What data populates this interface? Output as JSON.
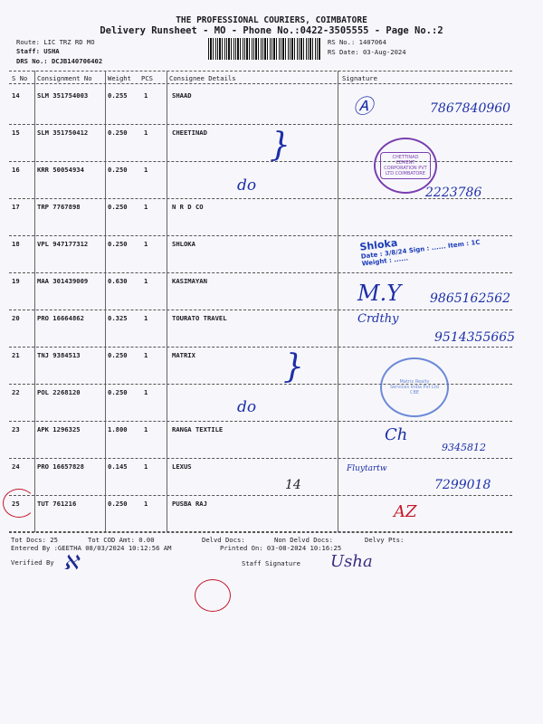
{
  "header": {
    "company": "THE PROFESSIONAL COURIERS, COIMBATORE",
    "subtitle": "Delivery Runsheet - MO - Phone No.:0422-3505555 - Page No.:2",
    "route": "Route: LIC TRZ RD MO",
    "staff": "Staff: USHA",
    "drs": "DRS No.: DCJB140706402",
    "rs_no": "RS No.: 1407064",
    "rs_date": "RS Date: 03-Aug-2024"
  },
  "table": {
    "columns": [
      "S No",
      "Consignment No",
      "Weight",
      "PCS",
      "Consignee Details",
      "Signature"
    ],
    "rows": [
      {
        "sno": "14",
        "consignment": "SLM 351754003",
        "weight": "0.255",
        "pcs": "1",
        "consignee": "SHAAD"
      },
      {
        "sno": "15",
        "consignment": "SLM 351750412",
        "weight": "0.250",
        "pcs": "1",
        "consignee": "CHEETINAD"
      },
      {
        "sno": "16",
        "consignment": "KRR 50054934",
        "weight": "0.250",
        "pcs": "1",
        "consignee": ""
      },
      {
        "sno": "17",
        "consignment": "TRP 7767898",
        "weight": "0.250",
        "pcs": "1",
        "consignee": "N R D CO"
      },
      {
        "sno": "18",
        "consignment": "VPL 947177312",
        "weight": "0.250",
        "pcs": "1",
        "consignee": "SHLOKA"
      },
      {
        "sno": "19",
        "consignment": "MAA 301439009",
        "weight": "0.630",
        "pcs": "1",
        "consignee": "KASIMAYAN"
      },
      {
        "sno": "20",
        "consignment": "PRO 16664862",
        "weight": "0.325",
        "pcs": "1",
        "consignee": "TOURATO TRAVEL"
      },
      {
        "sno": "21",
        "consignment": "TNJ 9384513",
        "weight": "0.250",
        "pcs": "1",
        "consignee": "MATRIX"
      },
      {
        "sno": "22",
        "consignment": "POL 2268120",
        "weight": "0.250",
        "pcs": "1",
        "consignee": ""
      },
      {
        "sno": "23",
        "consignment": "APK 1296325",
        "weight": "1.800",
        "pcs": "1",
        "consignee": "RANGA TEXTILE"
      },
      {
        "sno": "24",
        "consignment": "PRO 16657828",
        "weight": "0.145",
        "pcs": "1",
        "consignee": "LEXUS"
      },
      {
        "sno": "25",
        "consignment": "TUT 761216",
        "weight": "0.250",
        "pcs": "1",
        "consignee": "PUSBA RAJ"
      }
    ]
  },
  "handwriting": {
    "phone1": "7867840960",
    "phone2": "2223786",
    "phone3": "9865162562",
    "phone4": "9514355665",
    "phone5": "9345812",
    "phone6": "7299018",
    "do1": "do",
    "do2": "do",
    "num14": "14",
    "az": "AZ",
    "usha": "Usha"
  },
  "stamps": {
    "chettinad": "CHETTINAD CEMENT CORPORATION PVT LTD COIMBATORE",
    "shloka": "Shloka",
    "shloka_fields": "Date : 3/8/24  Sign : ......  Item : 1C  Weight : ......",
    "matrix": "Matrix Realty Services India Pvt Ltd CBE"
  },
  "footer": {
    "tot_docs": "Tot Docs:  25",
    "tot_cod": "Tot COD Amt:    0.00",
    "delvd": "Delvd Docs:",
    "non_delvd": "Non Delvd Docs:",
    "delvy_pts": "Delvy Pts:",
    "entered": "Entered By :GEETHA 08/03/2024 10:12:56 AM",
    "printed": "Printed On: 03-08-2024 10:16:25",
    "verified": "Verified By",
    "staff_sig": "Staff Signature"
  }
}
